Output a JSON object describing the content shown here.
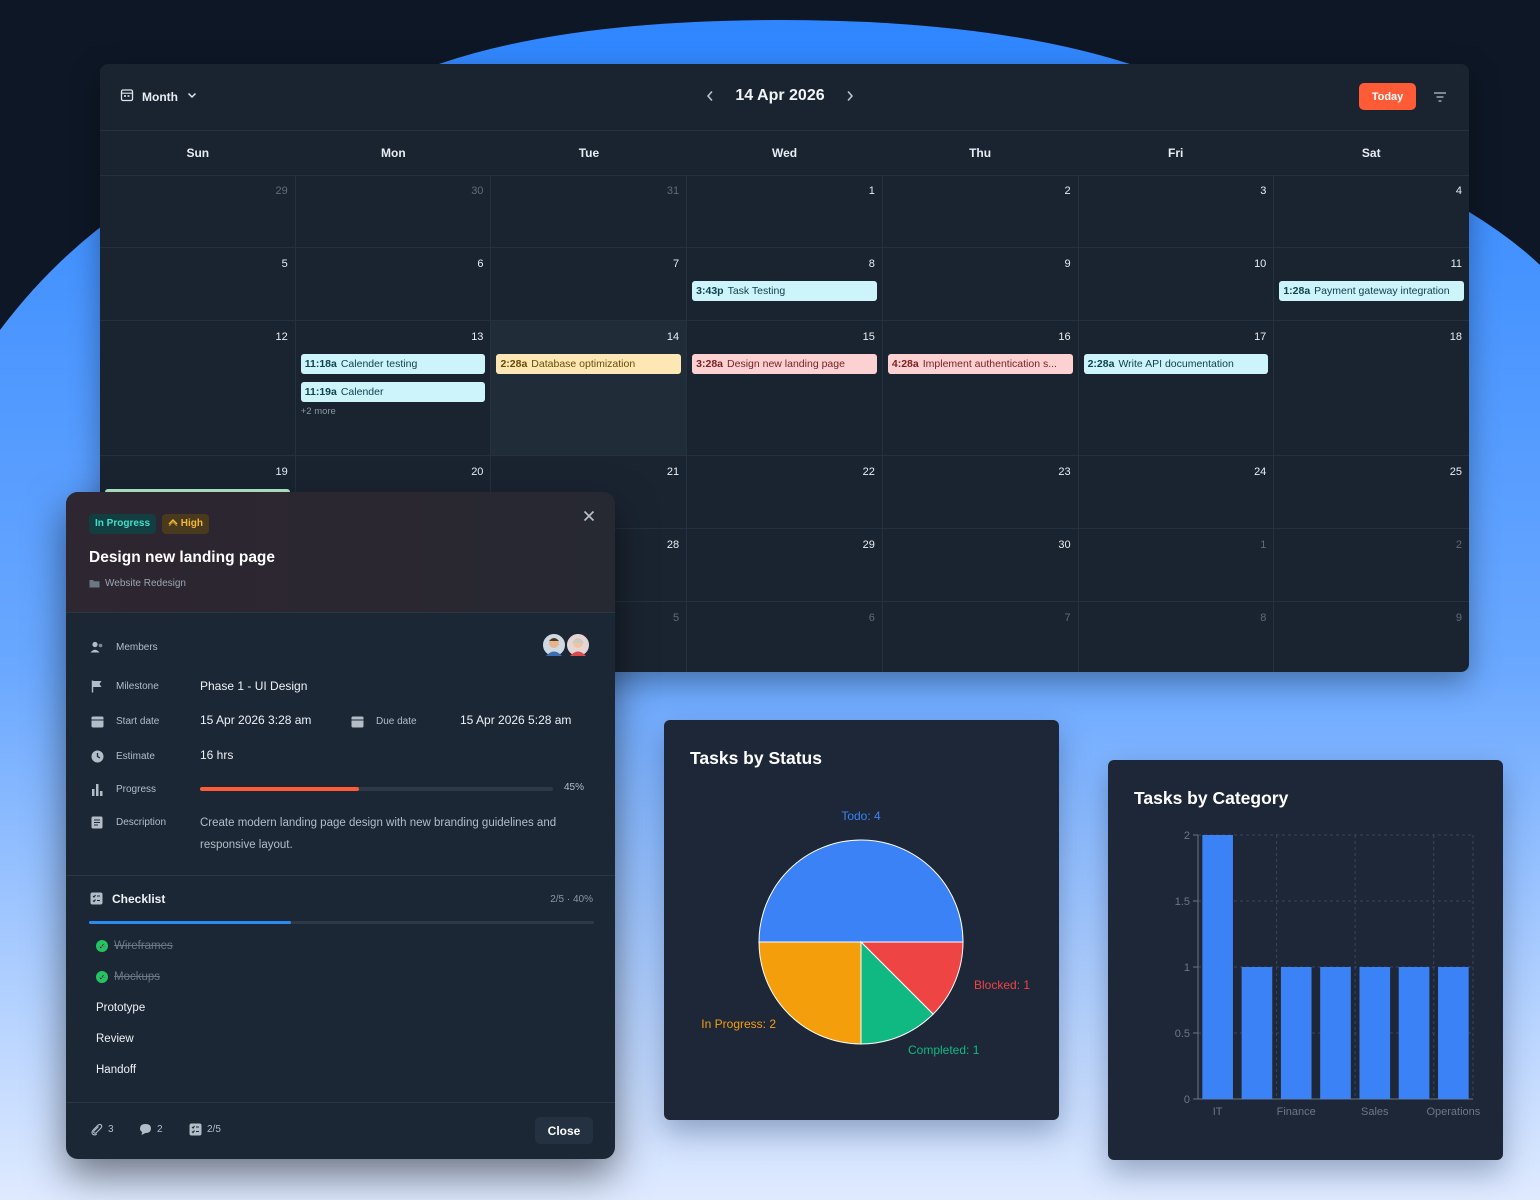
{
  "colors": {
    "accent": "#ff5b36",
    "event_cyan": "#cdf3fb",
    "event_yellow": "#fde8b5",
    "event_pink": "#fcd1d1",
    "event_green": "#b8f0cf",
    "pie_todo": "#3b82f6",
    "pie_blocked": "#ef4444",
    "pie_completed": "#10b981",
    "pie_inprogress": "#f59e0b",
    "bar": "#3b82f6"
  },
  "calendar": {
    "view_label": "Month",
    "current_date": "14 Apr 2026",
    "today_label": "Today",
    "weekdays": [
      "Sun",
      "Mon",
      "Tue",
      "Wed",
      "Thu",
      "Fri",
      "Sat"
    ],
    "weeks": [
      [
        {
          "d": "29",
          "m": true
        },
        {
          "d": "30",
          "m": true
        },
        {
          "d": "31",
          "m": true
        },
        {
          "d": "1"
        },
        {
          "d": "2"
        },
        {
          "d": "3"
        },
        {
          "d": "4"
        }
      ],
      [
        {
          "d": "5"
        },
        {
          "d": "6"
        },
        {
          "d": "7"
        },
        {
          "d": "8",
          "events": [
            {
              "time": "3:43p",
              "title": "Task Testing",
              "color": "event_cyan"
            }
          ]
        },
        {
          "d": "9"
        },
        {
          "d": "10"
        },
        {
          "d": "11",
          "events": [
            {
              "time": "1:28a",
              "title": "Payment gateway integration",
              "color": "event_cyan"
            }
          ]
        }
      ],
      [
        {
          "d": "12"
        },
        {
          "d": "13",
          "events": [
            {
              "time": "11:18a",
              "title": "Calender testing",
              "color": "event_cyan"
            },
            {
              "time": "11:19a",
              "title": "Calender",
              "color": "event_cyan"
            }
          ],
          "more": "+2 more"
        },
        {
          "d": "14",
          "today": true,
          "events": [
            {
              "time": "2:28a",
              "title": "Database optimization",
              "color": "event_yellow"
            }
          ]
        },
        {
          "d": "15",
          "events": [
            {
              "time": "3:28a",
              "title": "Design new landing page",
              "color": "event_pink"
            }
          ]
        },
        {
          "d": "16",
          "events": [
            {
              "time": "4:28a",
              "title": "Implement authentication s...",
              "color": "event_pink"
            }
          ]
        },
        {
          "d": "17",
          "events": [
            {
              "time": "2:28a",
              "title": "Write API documentation",
              "color": "event_cyan"
            }
          ]
        },
        {
          "d": "18"
        }
      ],
      [
        {
          "d": "19",
          "events": [
            {
              "time": "",
              "title": "",
              "color": "event_green"
            }
          ]
        },
        {
          "d": "20"
        },
        {
          "d": "21"
        },
        {
          "d": "22"
        },
        {
          "d": "23"
        },
        {
          "d": "24"
        },
        {
          "d": "25"
        }
      ],
      [
        {
          "d": ""
        },
        {
          "d": ""
        },
        {
          "d": "28"
        },
        {
          "d": "29"
        },
        {
          "d": "30"
        },
        {
          "d": "1",
          "m": true
        },
        {
          "d": "2",
          "m": true
        }
      ],
      [
        {
          "d": ""
        },
        {
          "d": ""
        },
        {
          "d": "5",
          "m": true
        },
        {
          "d": "6",
          "m": true
        },
        {
          "d": "7",
          "m": true
        },
        {
          "d": "8",
          "m": true
        },
        {
          "d": "9",
          "m": true
        }
      ]
    ]
  },
  "task": {
    "status_badge": "In Progress",
    "priority_badge": "High",
    "title": "Design new landing page",
    "project": "Website Redesign",
    "labels": {
      "members": "Members",
      "milestone": "Milestone",
      "start_date": "Start date",
      "due_date": "Due date",
      "estimate": "Estimate",
      "progress": "Progress",
      "description": "Description"
    },
    "milestone": "Phase 1 - UI Design",
    "start_date": "15 Apr 2026 3:28 am",
    "due_date": "15 Apr 2026 5:28 am",
    "estimate": "16 hrs",
    "progress": 0.45,
    "progress_label": "45%",
    "description": "Create modern landing page design with new branding guidelines and responsive layout.",
    "checklist": {
      "title": "Checklist",
      "count": "2/5 · 40%",
      "progress": 0.4,
      "items": [
        {
          "label": "Wireframes",
          "done": true
        },
        {
          "label": "Mockups",
          "done": true
        },
        {
          "label": "Prototype",
          "done": false
        },
        {
          "label": "Review",
          "done": false
        },
        {
          "label": "Handoff",
          "done": false
        }
      ]
    },
    "footer": {
      "attachments": "3",
      "comments": "2",
      "checklist": "2/5",
      "close_label": "Close"
    }
  },
  "chart_data": [
    {
      "type": "pie",
      "title": "Tasks by Status",
      "slices": [
        {
          "label": "Todo: 4",
          "value": 4,
          "color": "pie_todo"
        },
        {
          "label": "Blocked: 1",
          "value": 1,
          "color": "pie_blocked"
        },
        {
          "label": "Completed: 1",
          "value": 1,
          "color": "pie_completed"
        },
        {
          "label": "In Progress: 2",
          "value": 2,
          "color": "pie_inprogress"
        }
      ]
    },
    {
      "type": "bar",
      "title": "Tasks by Category",
      "categories": [
        "IT",
        "",
        "Finance",
        "",
        "Sales",
        "",
        "Operations"
      ],
      "values": [
        2,
        1,
        1,
        1,
        1,
        1,
        1
      ],
      "ylim": [
        0,
        2
      ],
      "yticks": [
        "0",
        "0.5",
        "1",
        "1.5",
        "2"
      ],
      "grid": true
    }
  ]
}
